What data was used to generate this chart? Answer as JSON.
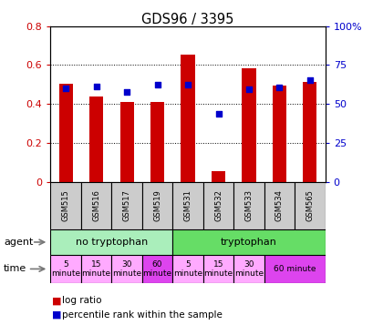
{
  "title": "GDS96 / 3395",
  "samples": [
    "GSM515",
    "GSM516",
    "GSM517",
    "GSM519",
    "GSM531",
    "GSM532",
    "GSM533",
    "GSM534",
    "GSM565"
  ],
  "log_ratio": [
    0.505,
    0.44,
    0.41,
    0.41,
    0.655,
    0.055,
    0.585,
    0.495,
    0.515
  ],
  "percentile_rank": [
    60.0,
    61.5,
    57.5,
    62.5,
    62.5,
    43.5,
    59.5,
    60.5,
    65.5
  ],
  "ylim_left": [
    0,
    0.8
  ],
  "ylim_right": [
    0,
    100
  ],
  "yticks_left": [
    0,
    0.2,
    0.4,
    0.6,
    0.8
  ],
  "yticks_left_labels": [
    "0",
    "0.2",
    "0.4",
    "0.6",
    "0.8"
  ],
  "yticks_right": [
    0,
    25,
    50,
    75,
    100
  ],
  "yticks_right_labels": [
    "0",
    "25",
    "50",
    "75",
    "100%"
  ],
  "bar_color": "#cc0000",
  "dot_color": "#0000cc",
  "bg_color": "#ffffff",
  "plot_bg_color": "#ffffff",
  "axis_color_left": "#cc0000",
  "axis_color_right": "#0000cc",
  "sample_box_color": "#cccccc",
  "agent_groups": [
    {
      "label": "no tryptophan",
      "start": 0,
      "end": 4,
      "color": "#aaeebb"
    },
    {
      "label": "tryptophan",
      "start": 4,
      "end": 9,
      "color": "#66dd66"
    }
  ],
  "time_data": [
    {
      "label": "5\nminute",
      "start": 0,
      "end": 1,
      "color": "#ffaaff"
    },
    {
      "label": "15\nminute",
      "start": 1,
      "end": 2,
      "color": "#ffaaff"
    },
    {
      "label": "30\nminute",
      "start": 2,
      "end": 3,
      "color": "#ffaaff"
    },
    {
      "label": "60\nminute",
      "start": 3,
      "end": 4,
      "color": "#dd44ee"
    },
    {
      "label": "5\nminute",
      "start": 4,
      "end": 5,
      "color": "#ffaaff"
    },
    {
      "label": "15\nminute",
      "start": 5,
      "end": 6,
      "color": "#ffaaff"
    },
    {
      "label": "30\nminute",
      "start": 6,
      "end": 7,
      "color": "#ffaaff"
    },
    {
      "label": "60 minute",
      "start": 7,
      "end": 9,
      "color": "#dd44ee"
    }
  ]
}
